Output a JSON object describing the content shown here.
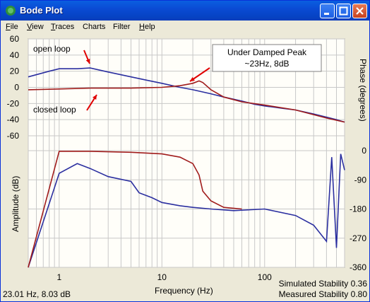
{
  "window": {
    "title": "Bode Plot"
  },
  "menu": [
    {
      "label": "File",
      "accel": "F",
      "rest": "ile"
    },
    {
      "label": "View",
      "accel": "V",
      "rest": "iew"
    },
    {
      "label": "Traces",
      "accel": "T",
      "rest": "races"
    },
    {
      "label": "Charts",
      "accel": "",
      "rest": "Charts"
    },
    {
      "label": "Filter",
      "accel": "",
      "rest": "Filter"
    },
    {
      "label": "Help",
      "accel": "H",
      "rest": "elp"
    }
  ],
  "colors": {
    "open_loop": "#2b2fa0",
    "closed_loop": "#a01c1c",
    "annotation_arrow": "#e00000"
  },
  "status": {
    "cursor": "23.01 Hz,   8.03 dB",
    "simulated": "Simulated Stability 0.36",
    "measured": "Measured Stability 0.80"
  },
  "chart_data": {
    "type": "line",
    "x_label": "Frequency (Hz)",
    "x_scale": "log",
    "x_ticks": [
      "1",
      "10",
      "100"
    ],
    "top": {
      "y_label": "Amplitude (dB)",
      "ylim": [
        -70,
        65
      ],
      "y_ticks": [
        "60",
        "40",
        "20",
        "0",
        "-20",
        "-40",
        "-60"
      ],
      "series": [
        {
          "x": [
            0.5,
            0.8,
            1.0,
            1.5,
            2.0,
            3.0,
            5.0,
            7.0,
            10,
            15,
            20,
            30,
            40,
            60,
            80,
            100,
            150,
            200,
            300,
            400,
            500,
            600
          ],
          "values": [
            13,
            20,
            23,
            23,
            24,
            19,
            13,
            9,
            5,
            0,
            -3,
            -8,
            -12,
            -17,
            -21,
            -23,
            -26,
            -28,
            -33,
            -37,
            -40,
            -43
          ]
        },
        {
          "x": [
            0.5,
            1.0,
            2.0,
            5.0,
            10,
            15,
            20,
            23,
            25,
            30,
            40,
            60,
            100,
            200,
            400,
            600
          ],
          "values": [
            -3,
            -2,
            -1,
            -1,
            0,
            2,
            5,
            8,
            6,
            -3,
            -12,
            -18,
            -22,
            -28,
            -38,
            -43
          ]
        }
      ],
      "annotations": [
        "open loop",
        "closed loop",
        "Under Damped Peak",
        "~23Hz, 8dB"
      ]
    },
    "bottom": {
      "y_label": "Phase (degrees)",
      "ylim": [
        -360,
        0
      ],
      "y_ticks": [
        "0",
        "-90",
        "-180",
        "-270",
        "-360"
      ],
      "series": [
        {
          "x": [
            0.5,
            1.0,
            1.5,
            2.0,
            3.0,
            5.0,
            6.0,
            8.0,
            10,
            15,
            20,
            30,
            50,
            100,
            200,
            300,
            400,
            450,
            500,
            550,
            600
          ],
          "values": [
            -360,
            -70,
            -40,
            -55,
            -80,
            -95,
            -130,
            -145,
            -160,
            -170,
            -175,
            -180,
            -185,
            -180,
            -200,
            -230,
            -280,
            -20,
            -300,
            -10,
            -60
          ]
        },
        {
          "x": [
            0.5,
            1.0,
            2.0,
            5.0,
            10,
            15,
            20,
            23,
            25,
            30,
            40,
            60
          ],
          "values": [
            -360,
            -2,
            -2,
            -5,
            -10,
            -20,
            -40,
            -75,
            -125,
            -155,
            -175,
            -180
          ]
        }
      ]
    }
  }
}
